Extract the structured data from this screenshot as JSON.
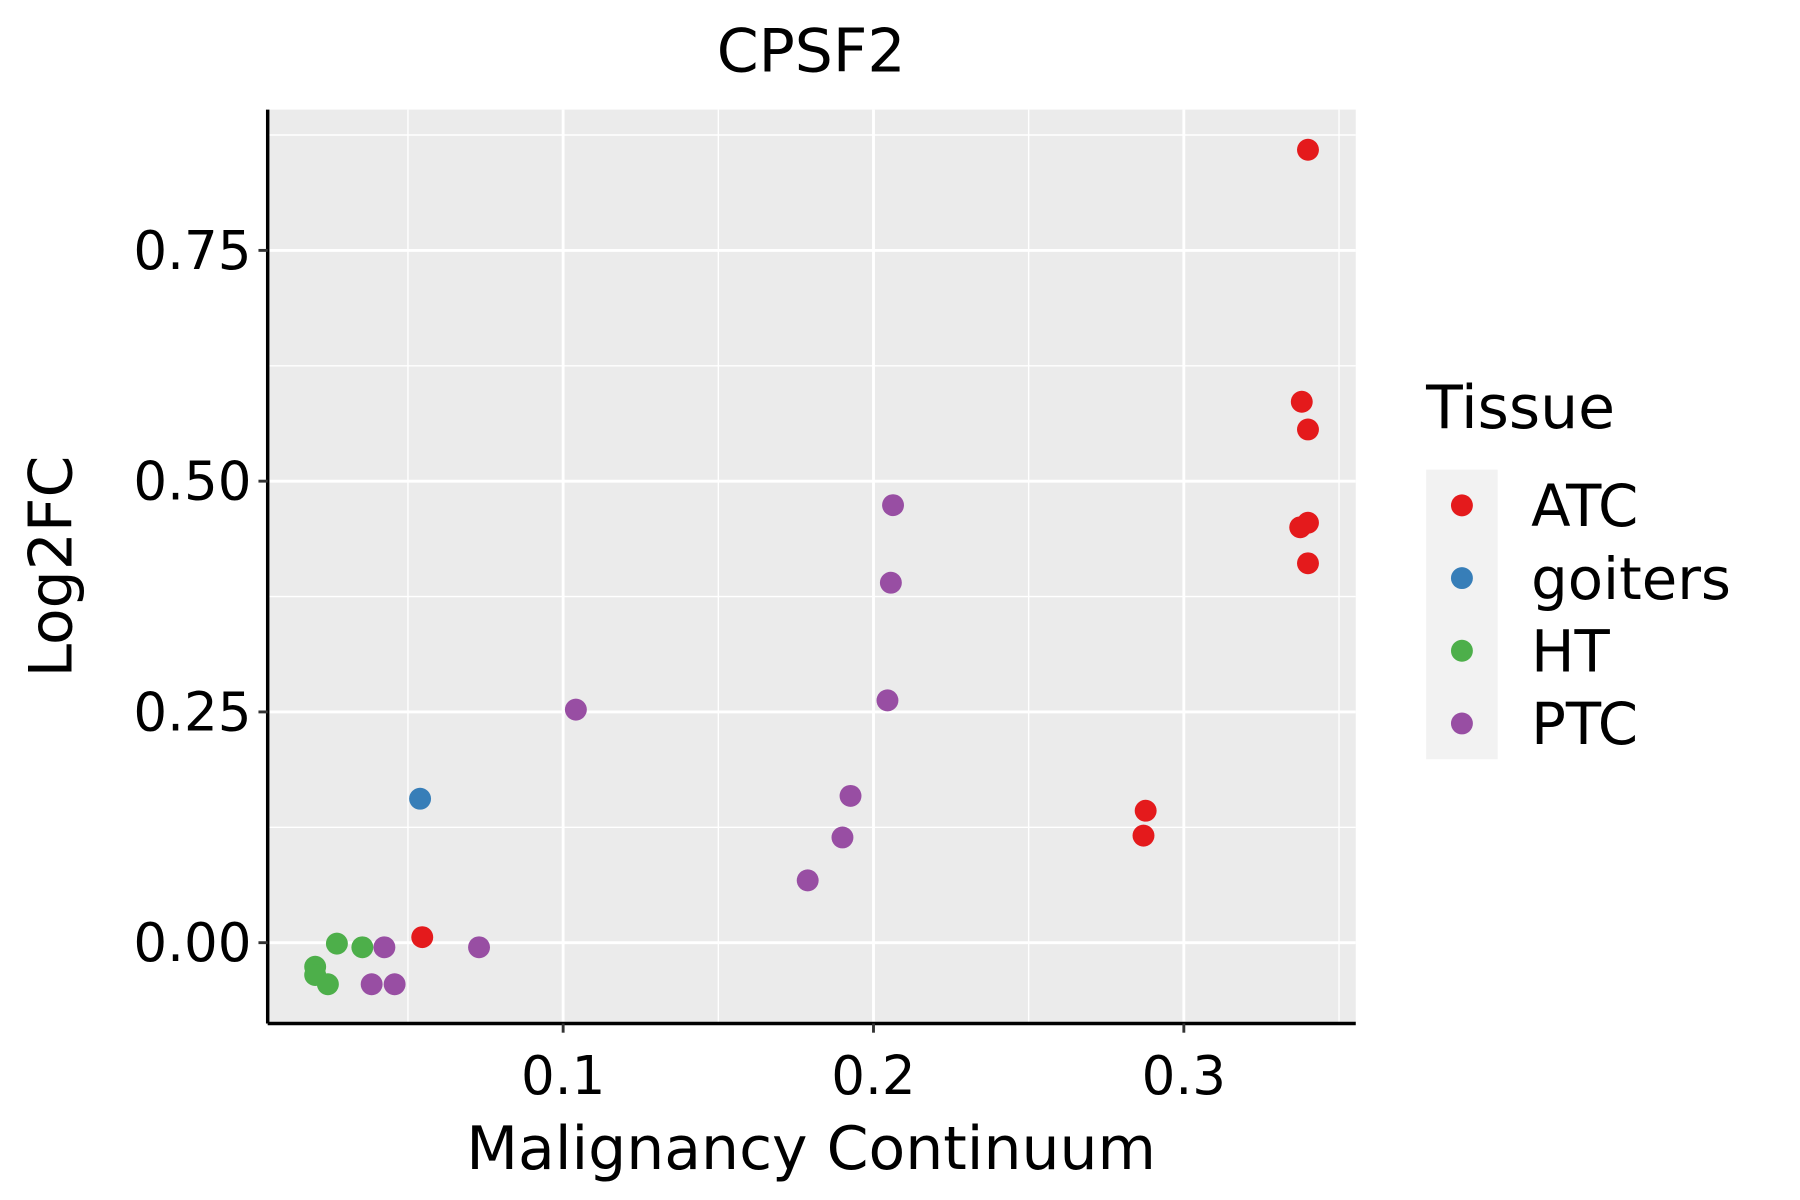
{
  "chart_data": {
    "type": "scatter",
    "title": "CPSF2",
    "xlabel": "Malignancy Continuum",
    "ylabel": "Log2FC",
    "xlim": [
      0.0048,
      0.3554
    ],
    "ylim": [
      -0.0875,
      0.9025
    ],
    "xticks": [
      0.1,
      0.2,
      0.3
    ],
    "xtick_labels": [
      "0.1",
      "0.2",
      "0.3"
    ],
    "xminor": [
      0.05,
      0.15,
      0.25,
      0.35
    ],
    "yticks": [
      0,
      0.25,
      0.5,
      0.75
    ],
    "ytick_labels": [
      "0.00",
      "0.25",
      "0.50",
      "0.75"
    ],
    "yminor": [
      0.125,
      0.375,
      0.625,
      0.875
    ],
    "grid": true,
    "legend": {
      "title": "Tissue",
      "placement": "right"
    },
    "series": [
      {
        "name": "ATC",
        "color": "#E41A1C",
        "points": [
          [
            0.34,
            0.859
          ],
          [
            0.338,
            0.586
          ],
          [
            0.34,
            0.556
          ],
          [
            0.3375,
            0.45
          ],
          [
            0.34,
            0.455
          ],
          [
            0.34,
            0.411
          ],
          [
            0.2877,
            0.143
          ],
          [
            0.287,
            0.116
          ],
          [
            0.0546,
            0.006
          ]
        ]
      },
      {
        "name": "goiters",
        "color": "#377EB8",
        "points": [
          [
            0.0539,
            0.156
          ]
        ]
      },
      {
        "name": "HT",
        "color": "#4DAF4A",
        "points": [
          [
            0.0271,
            -0.001
          ],
          [
            0.0353,
            -0.005
          ],
          [
            0.0201,
            -0.026
          ],
          [
            0.0201,
            -0.035
          ],
          [
            0.0242,
            -0.045
          ]
        ]
      },
      {
        "name": "PTC",
        "color": "#984EA3",
        "points": [
          [
            0.2063,
            0.474
          ],
          [
            0.2056,
            0.39
          ],
          [
            0.2045,
            0.2625
          ],
          [
            0.1041,
            0.2525
          ],
          [
            0.1926,
            0.159
          ],
          [
            0.19,
            0.114
          ],
          [
            0.1788,
            0.0675
          ],
          [
            0.0424,
            -0.005
          ],
          [
            0.0729,
            -0.005
          ],
          [
            0.0383,
            -0.045
          ],
          [
            0.0457,
            -0.045
          ]
        ]
      }
    ]
  }
}
